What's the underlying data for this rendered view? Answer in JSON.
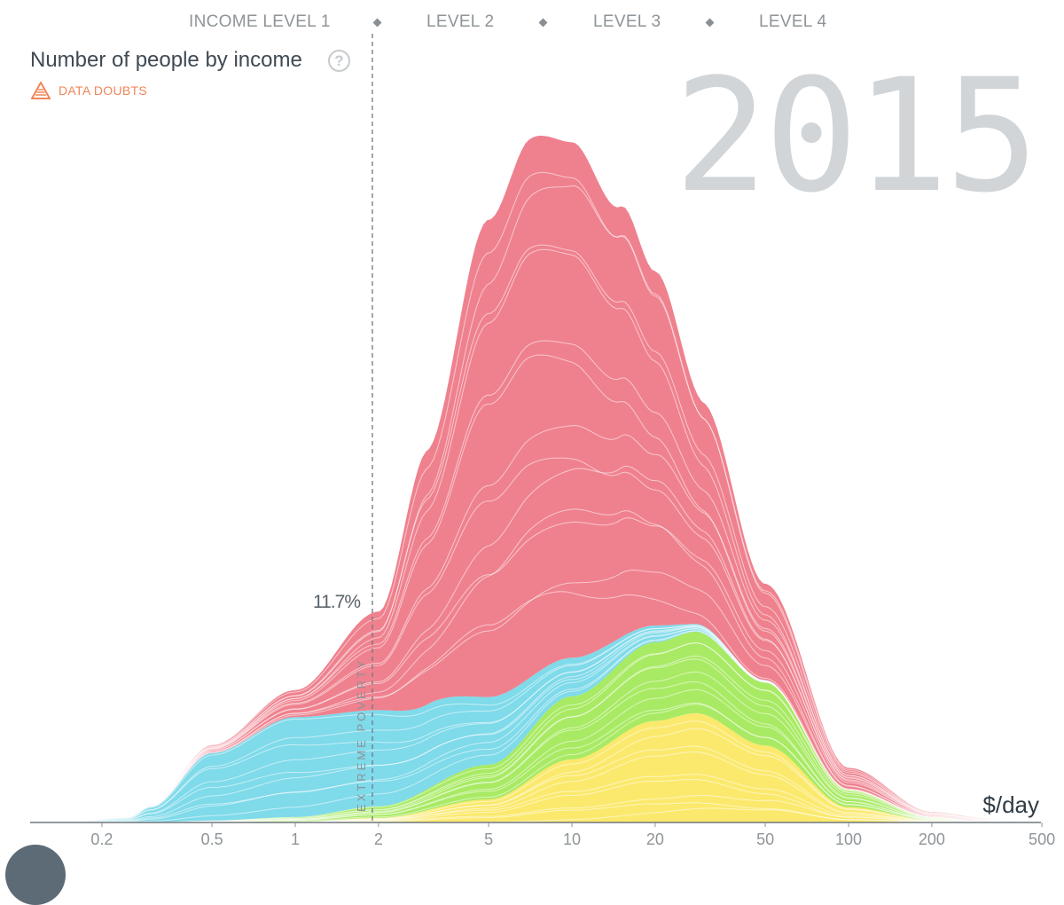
{
  "header": {
    "levels": [
      "INCOME LEVEL 1",
      "LEVEL 2",
      "LEVEL 3",
      "LEVEL 4"
    ]
  },
  "title": "Number of people by income",
  "help_icon": "question-mark-icon",
  "data_doubts_label": "DATA DOUBTS",
  "data_doubts_icon": "warning-triangle-icon",
  "year": "2015",
  "poverty_line": {
    "label": "EXTREME POVERTY",
    "value_text": "11.7%",
    "x_value": 1.9
  },
  "colors": {
    "asia": "#ef818e",
    "africa": "#7fdaea",
    "americas": "#a8ea64",
    "europe": "#fbe96d",
    "axis": "#8e9498",
    "year": "#d1d5d8",
    "doubts": "#f0865a"
  },
  "chart_data": {
    "type": "area",
    "x_scale": "log",
    "xlabel": "$/day",
    "xlim": [
      0.13,
      520
    ],
    "x_ticks": [
      0.2,
      0.5,
      1,
      2,
      5,
      10,
      20,
      50,
      100,
      200,
      500
    ],
    "x_tick_labels": [
      "0.2",
      "0.5",
      "1",
      "2",
      "5",
      "10",
      "20",
      "50",
      "100",
      "200",
      "500"
    ],
    "stacked": true,
    "series": [
      {
        "key": "europe",
        "color": "#fbe96d",
        "x": [
          0.13,
          0.3,
          1,
          2,
          5,
          10,
          20,
          28,
          50,
          100,
          200,
          300,
          500
        ],
        "values": [
          0,
          0.1,
          1,
          6,
          30,
          82,
          132,
          142,
          100,
          20,
          3,
          1,
          0
        ]
      },
      {
        "key": "americas",
        "color": "#a8ea64",
        "x": [
          0.13,
          0.3,
          0.5,
          1,
          2,
          5,
          10,
          20,
          28,
          50,
          100,
          200,
          300,
          500
        ],
        "values": [
          0,
          0.5,
          2,
          6,
          15,
          45,
          82,
          102,
          106,
          82,
          22,
          4,
          1,
          0
        ]
      },
      {
        "key": "africa",
        "color": "#7fdaea",
        "x": [
          0.13,
          0.25,
          0.3,
          0.5,
          1,
          2,
          3,
          5,
          10,
          20,
          28,
          50,
          100,
          500
        ],
        "values": [
          0,
          6,
          20,
          88,
          130,
          125,
          110,
          88,
          50,
          22,
          10,
          3,
          1,
          0
        ]
      },
      {
        "key": "asia",
        "color": "#ef818e",
        "x": [
          0.13,
          0.3,
          0.5,
          1,
          2,
          3,
          5,
          7,
          10,
          15,
          20,
          30,
          50,
          100,
          200,
          500
        ],
        "values": [
          0,
          2,
          10,
          35,
          128,
          330,
          620,
          700,
          670,
          560,
          460,
          290,
          125,
          28,
          6,
          0
        ]
      }
    ]
  }
}
